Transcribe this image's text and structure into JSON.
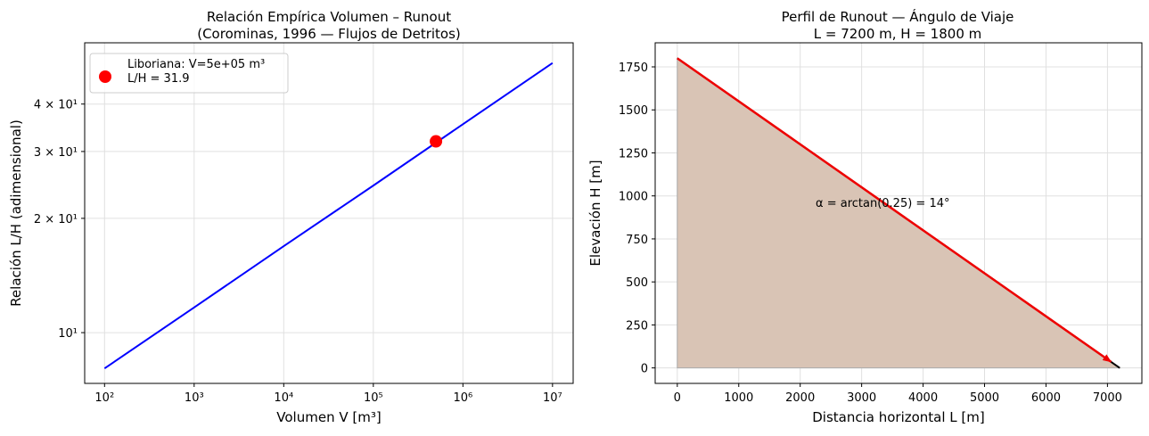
{
  "chart_data": [
    {
      "type": "line",
      "title": "Relación Empírica Volumen – Runout\n(Corominas, 1996 — Flujos de Detritos)",
      "xlabel": "Volumen V [m³]",
      "ylabel": "Relación L/H (adimensional)",
      "xscale": "log",
      "yscale": "log",
      "xlim": [
        60,
        17000000
      ],
      "ylim": [
        7.35,
        58
      ],
      "xticks": [
        {
          "value": 100,
          "label": "10²"
        },
        {
          "value": 1000,
          "label": "10³"
        },
        {
          "value": 10000,
          "label": "10⁴"
        },
        {
          "value": 100000,
          "label": "10⁵"
        },
        {
          "value": 1000000,
          "label": "10⁶"
        },
        {
          "value": 10000000,
          "label": "10⁷"
        }
      ],
      "yticks": [
        {
          "value": 10,
          "label": "10¹"
        },
        {
          "value": 20,
          "label": "2 × 10¹"
        },
        {
          "value": 30,
          "label": "3 × 10¹"
        },
        {
          "value": 40,
          "label": "4 × 10¹"
        }
      ],
      "grid": true,
      "legend": "upper left",
      "series": [
        {
          "type": "line",
          "color": "#0000ff",
          "x": [
            100,
            1000,
            10000,
            100000,
            1000000,
            10000000
          ],
          "values": [
            8.05,
            11.65,
            16.9,
            24.4,
            35.4,
            51.3
          ]
        },
        {
          "type": "scatter",
          "name": "Liboriana: V=5e+05 m³\nL/H = 31.9",
          "color": "#ff0000",
          "x": [
            500000
          ],
          "values": [
            31.9
          ]
        }
      ]
    },
    {
      "type": "area",
      "title": "Perfil de Runout — Ángulo de Viaje\nL = 7200 m,  H = 1800 m",
      "xlabel": "Distancia horizontal L [m]",
      "ylabel": "Elevación H [m]",
      "xlim": [
        -360,
        7560
      ],
      "ylim": [
        -90,
        1890
      ],
      "xticks": [
        0,
        1000,
        2000,
        3000,
        4000,
        5000,
        6000,
        7000
      ],
      "yticks": [
        0,
        250,
        500,
        750,
        1000,
        1250,
        1500,
        1750
      ],
      "grid": true,
      "x": [
        0,
        7200
      ],
      "series": [
        {
          "color": "#d9c4b5",
          "values": [
            1800,
            0
          ]
        }
      ],
      "arrow_color": "#ee0000",
      "annotation": {
        "text": "α = arctan(0.25) = 14°",
        "color": "#ff0000"
      }
    }
  ]
}
